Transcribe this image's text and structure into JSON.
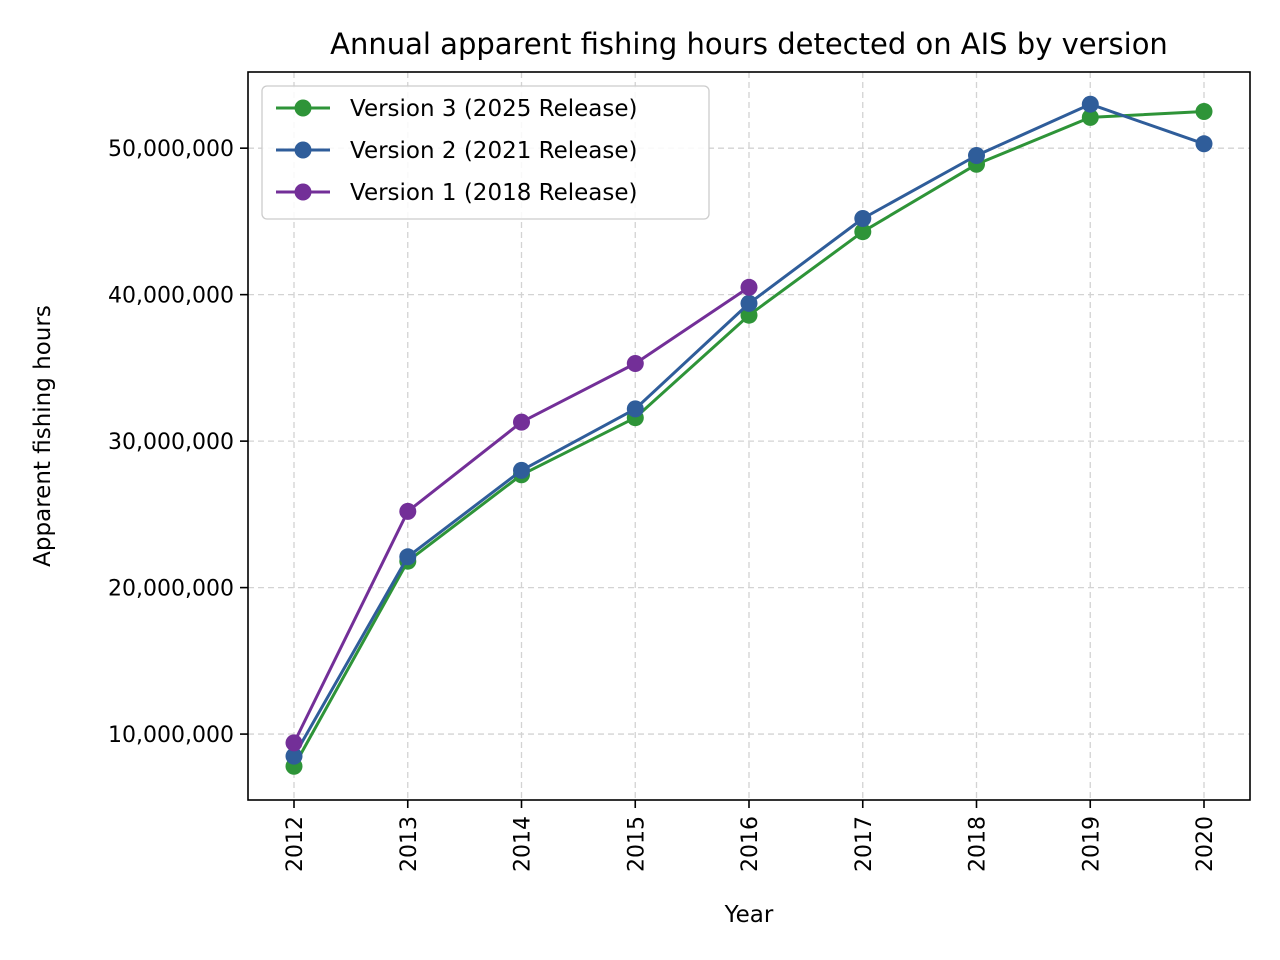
{
  "chart_data": {
    "type": "line",
    "title": "Annual apparent fishing hours detected on AIS by version",
    "xlabel": "Year",
    "ylabel": "Apparent fishing hours",
    "x": [
      "2012",
      "2013",
      "2014",
      "2015",
      "2016",
      "2017",
      "2018",
      "2019",
      "2020"
    ],
    "ylim": [
      5500000,
      55200000
    ],
    "yticks": [
      10000000,
      20000000,
      30000000,
      40000000,
      50000000
    ],
    "ytick_labels": [
      "10,000,000",
      "20,000,000",
      "30,000,000",
      "40,000,000",
      "50,000,000"
    ],
    "grid": true,
    "legend_position": "top-left",
    "series": [
      {
        "name": "Version 3 (2025 Release)",
        "color": "#2e9438",
        "values": [
          7800000,
          21800000,
          27700000,
          31600000,
          38600000,
          44300000,
          48900000,
          52100000,
          52500000
        ]
      },
      {
        "name": "Version 2 (2021 Release)",
        "color": "#2f5d9a",
        "values": [
          8500000,
          22100000,
          28000000,
          32200000,
          39400000,
          45200000,
          49500000,
          53000000,
          50300000
        ]
      },
      {
        "name": "Version 1 (2018 Release)",
        "color": "#732f98",
        "values": [
          9400000,
          25200000,
          31300000,
          35300000,
          40500000,
          null,
          null,
          null,
          null
        ]
      }
    ]
  }
}
